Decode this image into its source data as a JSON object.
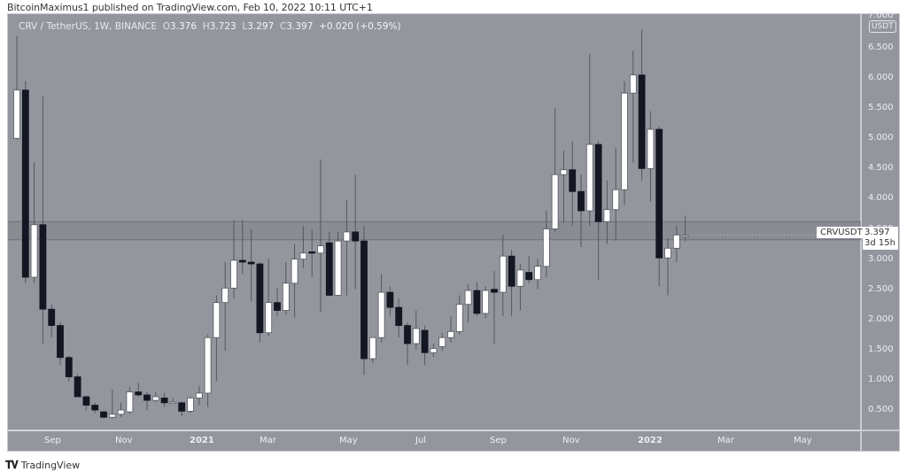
{
  "header": {
    "published_line": "BitcoinMaximus1 published on TradingView.com, Feb 10, 2022 10:11 UTC+1"
  },
  "legend": {
    "symbol": "CRV / TetherUS, 1W, BINANCE",
    "open_label": "O",
    "open": "3.376",
    "high_label": "H",
    "high": "3.723",
    "low_label": "L",
    "low": "3.297",
    "close_label": "C",
    "close": "3.397",
    "change": "+0.020 (+0.59%)"
  },
  "price_axis": {
    "currency_badge": "USDT",
    "ticks": [
      "7.000",
      "6.500",
      "6.000",
      "5.500",
      "5.000",
      "4.500",
      "4.000",
      "3.500",
      "3.000",
      "2.500",
      "2.000",
      "1.500",
      "1.000",
      "0.500"
    ]
  },
  "time_axis": {
    "ticks": [
      "Sep",
      "Nov",
      "2021",
      "Mar",
      "May",
      "Jul",
      "Sep",
      "Nov",
      "2022",
      "Mar",
      "May"
    ]
  },
  "last_price": {
    "symbol_label": "CRVUSDT",
    "price": "3.397",
    "countdown": "3d 15h"
  },
  "footer": {
    "brand": "TradingView"
  },
  "colors": {
    "background": "#94969e",
    "up_body": "#ffffff",
    "down_body": "#131722",
    "wick": "#55575e",
    "zone_fill": "#868890",
    "zone_line": "#6f7179"
  },
  "chart_data": {
    "type": "candlestick",
    "title": "CRV / TetherUS, 1W, BINANCE",
    "xlabel": "",
    "ylabel": "USDT",
    "ylim": [
      0.2,
      7.0
    ],
    "x_ticks": [
      "Sep",
      "Nov",
      "2021",
      "Mar",
      "May",
      "Jul",
      "Sep",
      "Nov",
      "2022",
      "Mar",
      "May"
    ],
    "y_ticks": [
      0.5,
      1.0,
      1.5,
      2.0,
      2.5,
      3.0,
      3.5,
      4.0,
      4.5,
      5.0,
      5.5,
      6.0,
      6.5,
      7.0
    ],
    "grid": false,
    "horizontal_zone": {
      "low": 3.32,
      "high": 3.62,
      "label": "resistance/support band"
    },
    "last": {
      "open": 3.376,
      "high": 3.723,
      "low": 3.297,
      "close": 3.397,
      "change": 0.02,
      "change_pct": 0.59
    },
    "candles": [
      {
        "o": 5.0,
        "h": 6.7,
        "l": 4.98,
        "c": 5.8
      },
      {
        "o": 5.8,
        "h": 5.95,
        "l": 2.6,
        "c": 2.7
      },
      {
        "o": 2.7,
        "h": 4.6,
        "l": 2.6,
        "c": 3.57
      },
      {
        "o": 3.57,
        "h": 5.7,
        "l": 1.6,
        "c": 2.17
      },
      {
        "o": 2.17,
        "h": 2.25,
        "l": 1.7,
        "c": 1.9
      },
      {
        "o": 1.9,
        "h": 1.95,
        "l": 1.25,
        "c": 1.37
      },
      {
        "o": 1.37,
        "h": 1.4,
        "l": 0.97,
        "c": 1.05
      },
      {
        "o": 1.05,
        "h": 1.1,
        "l": 0.72,
        "c": 0.72
      },
      {
        "o": 0.72,
        "h": 0.74,
        "l": 0.5,
        "c": 0.58
      },
      {
        "o": 0.58,
        "h": 0.62,
        "l": 0.45,
        "c": 0.5
      },
      {
        "o": 0.47,
        "h": 0.48,
        "l": 0.36,
        "c": 0.38
      },
      {
        "o": 0.38,
        "h": 0.84,
        "l": 0.36,
        "c": 0.43
      },
      {
        "o": 0.43,
        "h": 0.62,
        "l": 0.38,
        "c": 0.5
      },
      {
        "o": 0.47,
        "h": 0.88,
        "l": 0.44,
        "c": 0.8
      },
      {
        "o": 0.8,
        "h": 0.95,
        "l": 0.72,
        "c": 0.75
      },
      {
        "o": 0.75,
        "h": 0.8,
        "l": 0.5,
        "c": 0.66
      },
      {
        "o": 0.66,
        "h": 0.8,
        "l": 0.63,
        "c": 0.72
      },
      {
        "o": 0.7,
        "h": 0.78,
        "l": 0.55,
        "c": 0.62
      },
      {
        "o": 0.63,
        "h": 0.7,
        "l": 0.61,
        "c": 0.63
      },
      {
        "o": 0.62,
        "h": 0.64,
        "l": 0.4,
        "c": 0.48
      },
      {
        "o": 0.48,
        "h": 0.72,
        "l": 0.45,
        "c": 0.7
      },
      {
        "o": 0.7,
        "h": 0.9,
        "l": 0.58,
        "c": 0.78
      },
      {
        "o": 0.78,
        "h": 1.75,
        "l": 0.55,
        "c": 1.7
      },
      {
        "o": 1.7,
        "h": 2.4,
        "l": 0.98,
        "c": 2.28
      },
      {
        "o": 2.28,
        "h": 2.95,
        "l": 1.48,
        "c": 2.52
      },
      {
        "o": 2.52,
        "h": 3.65,
        "l": 2.35,
        "c": 2.98
      },
      {
        "o": 2.98,
        "h": 3.65,
        "l": 2.75,
        "c": 2.95
      },
      {
        "o": 2.95,
        "h": 3.5,
        "l": 2.3,
        "c": 2.92
      },
      {
        "o": 2.92,
        "h": 2.95,
        "l": 1.62,
        "c": 1.78
      },
      {
        "o": 1.78,
        "h": 3.0,
        "l": 1.72,
        "c": 2.28
      },
      {
        "o": 2.28,
        "h": 2.52,
        "l": 2.05,
        "c": 2.15
      },
      {
        "o": 2.15,
        "h": 2.95,
        "l": 2.08,
        "c": 2.6
      },
      {
        "o": 2.6,
        "h": 3.25,
        "l": 2.03,
        "c": 3.0
      },
      {
        "o": 3.0,
        "h": 3.55,
        "l": 2.85,
        "c": 3.1
      },
      {
        "o": 3.12,
        "h": 3.48,
        "l": 2.7,
        "c": 3.1
      },
      {
        "o": 3.1,
        "h": 4.65,
        "l": 2.13,
        "c": 3.22
      },
      {
        "o": 3.27,
        "h": 3.45,
        "l": 2.4,
        "c": 2.4
      },
      {
        "o": 2.4,
        "h": 3.45,
        "l": 2.38,
        "c": 3.3
      },
      {
        "o": 3.3,
        "h": 3.98,
        "l": 2.4,
        "c": 3.45
      },
      {
        "o": 3.45,
        "h": 4.4,
        "l": 2.5,
        "c": 3.3
      },
      {
        "o": 3.3,
        "h": 3.55,
        "l": 1.08,
        "c": 1.35
      },
      {
        "o": 1.35,
        "h": 1.7,
        "l": 1.28,
        "c": 1.7
      },
      {
        "o": 1.7,
        "h": 2.75,
        "l": 1.62,
        "c": 2.45
      },
      {
        "o": 2.45,
        "h": 2.55,
        "l": 2.05,
        "c": 2.2
      },
      {
        "o": 2.2,
        "h": 2.35,
        "l": 1.7,
        "c": 1.9
      },
      {
        "o": 1.9,
        "h": 1.95,
        "l": 1.25,
        "c": 1.6
      },
      {
        "o": 1.6,
        "h": 2.15,
        "l": 1.5,
        "c": 1.85
      },
      {
        "o": 1.82,
        "h": 1.9,
        "l": 1.25,
        "c": 1.45
      },
      {
        "o": 1.45,
        "h": 1.6,
        "l": 1.38,
        "c": 1.52
      },
      {
        "o": 1.55,
        "h": 1.78,
        "l": 1.48,
        "c": 1.7
      },
      {
        "o": 1.7,
        "h": 2.05,
        "l": 1.62,
        "c": 1.8
      },
      {
        "o": 1.8,
        "h": 2.4,
        "l": 1.75,
        "c": 2.25
      },
      {
        "o": 2.25,
        "h": 2.58,
        "l": 1.95,
        "c": 2.48
      },
      {
        "o": 2.48,
        "h": 2.62,
        "l": 2.05,
        "c": 2.1
      },
      {
        "o": 2.1,
        "h": 2.55,
        "l": 2.02,
        "c": 2.48
      },
      {
        "o": 2.5,
        "h": 2.8,
        "l": 1.6,
        "c": 2.45
      },
      {
        "o": 2.45,
        "h": 3.4,
        "l": 2.05,
        "c": 3.05
      },
      {
        "o": 3.05,
        "h": 3.15,
        "l": 2.05,
        "c": 2.55
      },
      {
        "o": 2.55,
        "h": 2.92,
        "l": 2.15,
        "c": 2.82
      },
      {
        "o": 2.78,
        "h": 3.05,
        "l": 2.6,
        "c": 2.66
      },
      {
        "o": 2.66,
        "h": 3.0,
        "l": 2.5,
        "c": 2.88
      },
      {
        "o": 2.88,
        "h": 3.8,
        "l": 2.7,
        "c": 3.5
      },
      {
        "o": 3.5,
        "h": 5.5,
        "l": 3.45,
        "c": 4.4
      },
      {
        "o": 4.4,
        "h": 4.8,
        "l": 3.6,
        "c": 4.48
      },
      {
        "o": 4.48,
        "h": 4.95,
        "l": 3.55,
        "c": 4.12
      },
      {
        "o": 4.12,
        "h": 4.4,
        "l": 3.2,
        "c": 3.8
      },
      {
        "o": 3.8,
        "h": 6.4,
        "l": 3.55,
        "c": 4.9
      },
      {
        "o": 4.9,
        "h": 4.95,
        "l": 2.65,
        "c": 3.62
      },
      {
        "o": 3.62,
        "h": 4.3,
        "l": 3.25,
        "c": 3.82
      },
      {
        "o": 3.82,
        "h": 4.85,
        "l": 3.3,
        "c": 4.15
      },
      {
        "o": 4.15,
        "h": 5.95,
        "l": 3.9,
        "c": 5.75
      },
      {
        "o": 5.75,
        "h": 6.45,
        "l": 4.6,
        "c": 6.05
      },
      {
        "o": 6.05,
        "h": 6.8,
        "l": 4.3,
        "c": 4.5
      },
      {
        "o": 4.5,
        "h": 5.45,
        "l": 3.95,
        "c": 5.15
      },
      {
        "o": 5.15,
        "h": 5.2,
        "l": 2.55,
        "c": 3.02
      },
      {
        "o": 3.02,
        "h": 3.35,
        "l": 2.4,
        "c": 3.18
      },
      {
        "o": 3.18,
        "h": 3.55,
        "l": 2.95,
        "c": 3.4
      },
      {
        "o": 3.376,
        "h": 3.723,
        "l": 3.297,
        "c": 3.397
      }
    ]
  }
}
